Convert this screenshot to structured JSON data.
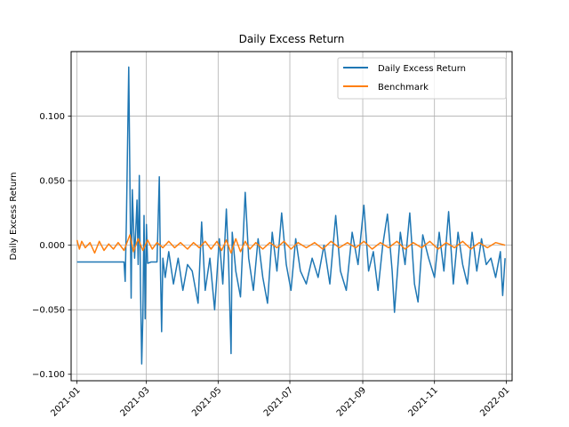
{
  "chart_data": {
    "type": "line",
    "title": "Daily Excess Return",
    "xlabel": "",
    "ylabel": "Daily Excess Return",
    "xlim": [
      "2020-12-27",
      "2022-01-06"
    ],
    "ylim": [
      -0.105,
      0.15
    ],
    "x_ticks": [
      "2021-01",
      "2021-03",
      "2021-05",
      "2021-07",
      "2021-09",
      "2021-11",
      "2022-01"
    ],
    "y_ticks": [
      "−0.100",
      "−0.050",
      "0.000",
      "0.050",
      "0.100"
    ],
    "y_tick_values": [
      -0.1,
      -0.05,
      0.0,
      0.05,
      0.1
    ],
    "grid": true,
    "legend_position": "top-right",
    "series": [
      {
        "name": "Daily Excess Return",
        "color": "#1f77b4",
        "points": [
          [
            "2021-01-01",
            -0.013
          ],
          [
            "2021-02-10",
            -0.013
          ],
          [
            "2021-02-11",
            -0.028
          ],
          [
            "2021-02-12",
            0.02
          ],
          [
            "2021-02-14",
            0.138
          ],
          [
            "2021-02-16",
            -0.041
          ],
          [
            "2021-02-17",
            0.043
          ],
          [
            "2021-02-19",
            -0.01
          ],
          [
            "2021-02-21",
            0.035
          ],
          [
            "2021-02-22",
            -0.015
          ],
          [
            "2021-02-23",
            0.054
          ],
          [
            "2021-02-24",
            -0.03
          ],
          [
            "2021-02-25",
            -0.092
          ],
          [
            "2021-02-26",
            -0.055
          ],
          [
            "2021-02-27",
            0.023
          ],
          [
            "2021-02-28",
            -0.057
          ],
          [
            "2021-03-01",
            0.016
          ],
          [
            "2021-03-02",
            -0.014
          ],
          [
            "2021-03-05",
            -0.013
          ],
          [
            "2021-03-10",
            -0.013
          ],
          [
            "2021-03-12",
            0.053
          ],
          [
            "2021-03-13",
            -0.02
          ],
          [
            "2021-03-14",
            -0.067
          ],
          [
            "2021-03-15",
            -0.01
          ],
          [
            "2021-03-17",
            -0.025
          ],
          [
            "2021-03-20",
            -0.005
          ],
          [
            "2021-03-24",
            -0.03
          ],
          [
            "2021-03-28",
            -0.01
          ],
          [
            "2021-04-01",
            -0.035
          ],
          [
            "2021-04-05",
            -0.015
          ],
          [
            "2021-04-09",
            -0.02
          ],
          [
            "2021-04-14",
            -0.045
          ],
          [
            "2021-04-17",
            0.018
          ],
          [
            "2021-04-20",
            -0.035
          ],
          [
            "2021-04-24",
            -0.01
          ],
          [
            "2021-04-28",
            -0.05
          ],
          [
            "2021-05-02",
            0.005
          ],
          [
            "2021-05-05",
            -0.03
          ],
          [
            "2021-05-08",
            0.028
          ],
          [
            "2021-05-10",
            -0.015
          ],
          [
            "2021-05-12",
            -0.084
          ],
          [
            "2021-05-13",
            0.01
          ],
          [
            "2021-05-16",
            -0.02
          ],
          [
            "2021-05-20",
            -0.04
          ],
          [
            "2021-05-24",
            0.041
          ],
          [
            "2021-05-27",
            -0.01
          ],
          [
            "2021-05-31",
            -0.035
          ],
          [
            "2021-06-04",
            0.005
          ],
          [
            "2021-06-08",
            -0.025
          ],
          [
            "2021-06-12",
            -0.045
          ],
          [
            "2021-06-16",
            0.01
          ],
          [
            "2021-06-20",
            -0.02
          ],
          [
            "2021-06-24",
            0.025
          ],
          [
            "2021-06-28",
            -0.015
          ],
          [
            "2021-07-02",
            -0.035
          ],
          [
            "2021-07-06",
            0.005
          ],
          [
            "2021-07-10",
            -0.02
          ],
          [
            "2021-07-15",
            -0.03
          ],
          [
            "2021-07-20",
            -0.01
          ],
          [
            "2021-07-25",
            -0.025
          ],
          [
            "2021-07-30",
            0.0
          ],
          [
            "2021-08-04",
            -0.03
          ],
          [
            "2021-08-09",
            0.023
          ],
          [
            "2021-08-13",
            -0.02
          ],
          [
            "2021-08-18",
            -0.035
          ],
          [
            "2021-08-23",
            0.01
          ],
          [
            "2021-08-28",
            -0.015
          ],
          [
            "2021-09-02",
            0.031
          ],
          [
            "2021-09-06",
            -0.02
          ],
          [
            "2021-09-10",
            -0.005
          ],
          [
            "2021-09-14",
            -0.035
          ],
          [
            "2021-09-18",
            0.0
          ],
          [
            "2021-09-22",
            0.024
          ],
          [
            "2021-09-26",
            -0.02
          ],
          [
            "2021-09-28",
            -0.052
          ],
          [
            "2021-10-03",
            0.01
          ],
          [
            "2021-10-07",
            -0.015
          ],
          [
            "2021-10-11",
            0.025
          ],
          [
            "2021-10-15",
            -0.03
          ],
          [
            "2021-10-18",
            -0.044
          ],
          [
            "2021-10-22",
            0.008
          ],
          [
            "2021-10-27",
            -0.01
          ],
          [
            "2021-11-01",
            -0.025
          ],
          [
            "2021-11-05",
            0.01
          ],
          [
            "2021-11-09",
            -0.02
          ],
          [
            "2021-11-13",
            0.026
          ],
          [
            "2021-11-17",
            -0.03
          ],
          [
            "2021-11-21",
            0.01
          ],
          [
            "2021-11-25",
            -0.015
          ],
          [
            "2021-11-29",
            -0.03
          ],
          [
            "2021-12-03",
            0.01
          ],
          [
            "2021-12-07",
            -0.02
          ],
          [
            "2021-12-11",
            0.005
          ],
          [
            "2021-12-15",
            -0.015
          ],
          [
            "2021-12-19",
            -0.01
          ],
          [
            "2021-12-23",
            -0.025
          ],
          [
            "2021-12-27",
            -0.005
          ],
          [
            "2021-12-29",
            -0.039
          ],
          [
            "2021-12-31",
            -0.01
          ]
        ]
      },
      {
        "name": "Benchmark",
        "color": "#ff7f0e",
        "points": [
          [
            "2021-01-01",
            0.004
          ],
          [
            "2021-01-03",
            -0.003
          ],
          [
            "2021-01-05",
            0.003
          ],
          [
            "2021-01-08",
            -0.002
          ],
          [
            "2021-01-12",
            0.002
          ],
          [
            "2021-01-16",
            -0.006
          ],
          [
            "2021-01-20",
            0.003
          ],
          [
            "2021-01-24",
            -0.004
          ],
          [
            "2021-01-28",
            0.001
          ],
          [
            "2021-02-01",
            -0.003
          ],
          [
            "2021-02-05",
            0.002
          ],
          [
            "2021-02-10",
            -0.004
          ],
          [
            "2021-02-15",
            0.008
          ],
          [
            "2021-02-18",
            -0.005
          ],
          [
            "2021-02-22",
            0.005
          ],
          [
            "2021-02-26",
            -0.004
          ],
          [
            "2021-03-02",
            0.004
          ],
          [
            "2021-03-06",
            -0.003
          ],
          [
            "2021-03-10",
            0.002
          ],
          [
            "2021-03-15",
            -0.002
          ],
          [
            "2021-03-20",
            0.003
          ],
          [
            "2021-03-25",
            -0.002
          ],
          [
            "2021-03-30",
            0.002
          ],
          [
            "2021-04-05",
            -0.003
          ],
          [
            "2021-04-10",
            0.002
          ],
          [
            "2021-04-15",
            -0.002
          ],
          [
            "2021-04-20",
            0.003
          ],
          [
            "2021-04-25",
            -0.003
          ],
          [
            "2021-04-30",
            0.003
          ],
          [
            "2021-05-04",
            -0.004
          ],
          [
            "2021-05-08",
            0.004
          ],
          [
            "2021-05-12",
            -0.006
          ],
          [
            "2021-05-16",
            0.005
          ],
          [
            "2021-05-20",
            -0.005
          ],
          [
            "2021-05-24",
            0.003
          ],
          [
            "2021-05-28",
            -0.003
          ],
          [
            "2021-06-02",
            0.002
          ],
          [
            "2021-06-08",
            -0.003
          ],
          [
            "2021-06-14",
            0.002
          ],
          [
            "2021-06-20",
            -0.002
          ],
          [
            "2021-06-26",
            0.003
          ],
          [
            "2021-07-02",
            -0.003
          ],
          [
            "2021-07-08",
            0.002
          ],
          [
            "2021-07-15",
            -0.002
          ],
          [
            "2021-07-22",
            0.002
          ],
          [
            "2021-07-29",
            -0.003
          ],
          [
            "2021-08-05",
            0.003
          ],
          [
            "2021-08-12",
            -0.002
          ],
          [
            "2021-08-19",
            0.002
          ],
          [
            "2021-08-26",
            -0.002
          ],
          [
            "2021-09-02",
            0.003
          ],
          [
            "2021-09-09",
            -0.003
          ],
          [
            "2021-09-16",
            0.002
          ],
          [
            "2021-09-23",
            -0.002
          ],
          [
            "2021-09-30",
            0.003
          ],
          [
            "2021-10-07",
            -0.003
          ],
          [
            "2021-10-14",
            0.002
          ],
          [
            "2021-10-21",
            -0.002
          ],
          [
            "2021-10-28",
            0.003
          ],
          [
            "2021-11-04",
            -0.003
          ],
          [
            "2021-11-11",
            0.002
          ],
          [
            "2021-11-18",
            -0.002
          ],
          [
            "2021-11-25",
            0.003
          ],
          [
            "2021-12-02",
            -0.003
          ],
          [
            "2021-12-09",
            0.002
          ],
          [
            "2021-12-16",
            -0.002
          ],
          [
            "2021-12-23",
            0.002
          ],
          [
            "2021-12-31",
            0.0
          ]
        ]
      }
    ]
  }
}
